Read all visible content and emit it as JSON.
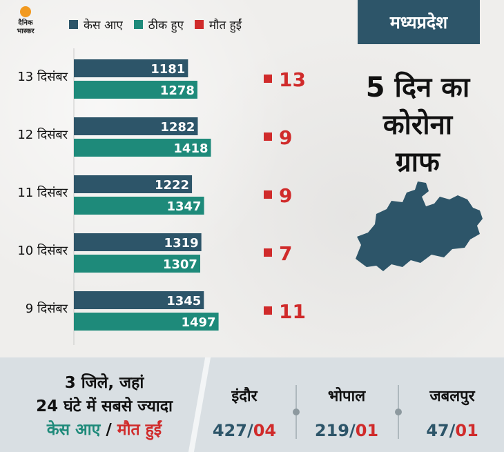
{
  "brand": {
    "line1": "दैनिक",
    "line2": "भास्कर"
  },
  "legend": [
    {
      "label": "केस आए",
      "color": "#2d5569"
    },
    {
      "label": "ठीक हुए",
      "color": "#1e8a7a"
    },
    {
      "label": "मौत हुईं",
      "color": "#d02b2b"
    }
  ],
  "title_tab": "मध्यप्रदेश",
  "headline": {
    "line1": "5 दिन का",
    "line2": "कोरोना",
    "line3": "ग्राफ"
  },
  "map_icon": "madhya-pradesh-map-icon",
  "chart_data": {
    "type": "bar",
    "categories": [
      "13 दिसंबर",
      "12 दिसंबर",
      "11 दिसंबर",
      "10 दिसंबर",
      "9 दिसंबर"
    ],
    "series": [
      {
        "name": "केस आए",
        "values": [
          1181,
          1282,
          1222,
          1319,
          1345
        ],
        "color": "#2d5569"
      },
      {
        "name": "ठीक हुए",
        "values": [
          1278,
          1418,
          1347,
          1307,
          1497
        ],
        "color": "#1e8a7a"
      },
      {
        "name": "मौत हुईं",
        "values": [
          13,
          9,
          9,
          7,
          11
        ],
        "color": "#d02b2b"
      }
    ],
    "orientation": "horizontal",
    "xlim": [
      0,
      1500
    ],
    "grid": false,
    "legend": "top-left"
  },
  "bottom": {
    "note": {
      "line1": "3 जिले, जहां",
      "line2": "24 घंटे में सबसे ज्यादा",
      "cases": "केस आए",
      "sep": " / ",
      "deaths": "मौत हुईं"
    },
    "districts": [
      {
        "name": "इंदौर",
        "cases": "427",
        "slash": "/",
        "deaths": "04"
      },
      {
        "name": "भोपाल",
        "cases": "219",
        "slash": "/",
        "deaths": "01"
      },
      {
        "name": "जबलपुर",
        "cases": "47",
        "slash": "/",
        "deaths": "01"
      }
    ]
  }
}
